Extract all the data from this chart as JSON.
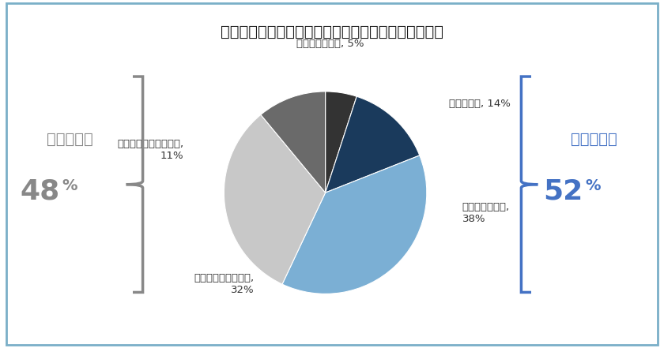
{
  "title": "現在の課長の仕事に、あなたはやりがいを感じている",
  "slices": [
    {
      "label": "あてはまらない, 5%",
      "value": 5,
      "color": "#333333"
    },
    {
      "label": "あてはまる, 14%",
      "value": 14,
      "color": "#1a3a5c"
    },
    {
      "label": "ややあてはまる,\n38%",
      "value": 38,
      "color": "#7bafd4"
    },
    {
      "label": "どちらとも言えない,\n32%",
      "value": 32,
      "color": "#c8c8c8"
    },
    {
      "label": "あまりあてはまらない,\n11%",
      "value": 11,
      "color": "#6a6a6a"
    }
  ],
  "left_label_line1": "やりがい無",
  "left_label_big": "48",
  "left_label_small": "%",
  "right_label_line1": "やりがい有",
  "right_label_big": "52",
  "right_label_small": "%",
  "left_color": "#888888",
  "right_color": "#4472c4",
  "background_color": "#ffffff",
  "border_color": "#7aafc8",
  "title_fontsize": 14,
  "label_fontsize": 9.5
}
